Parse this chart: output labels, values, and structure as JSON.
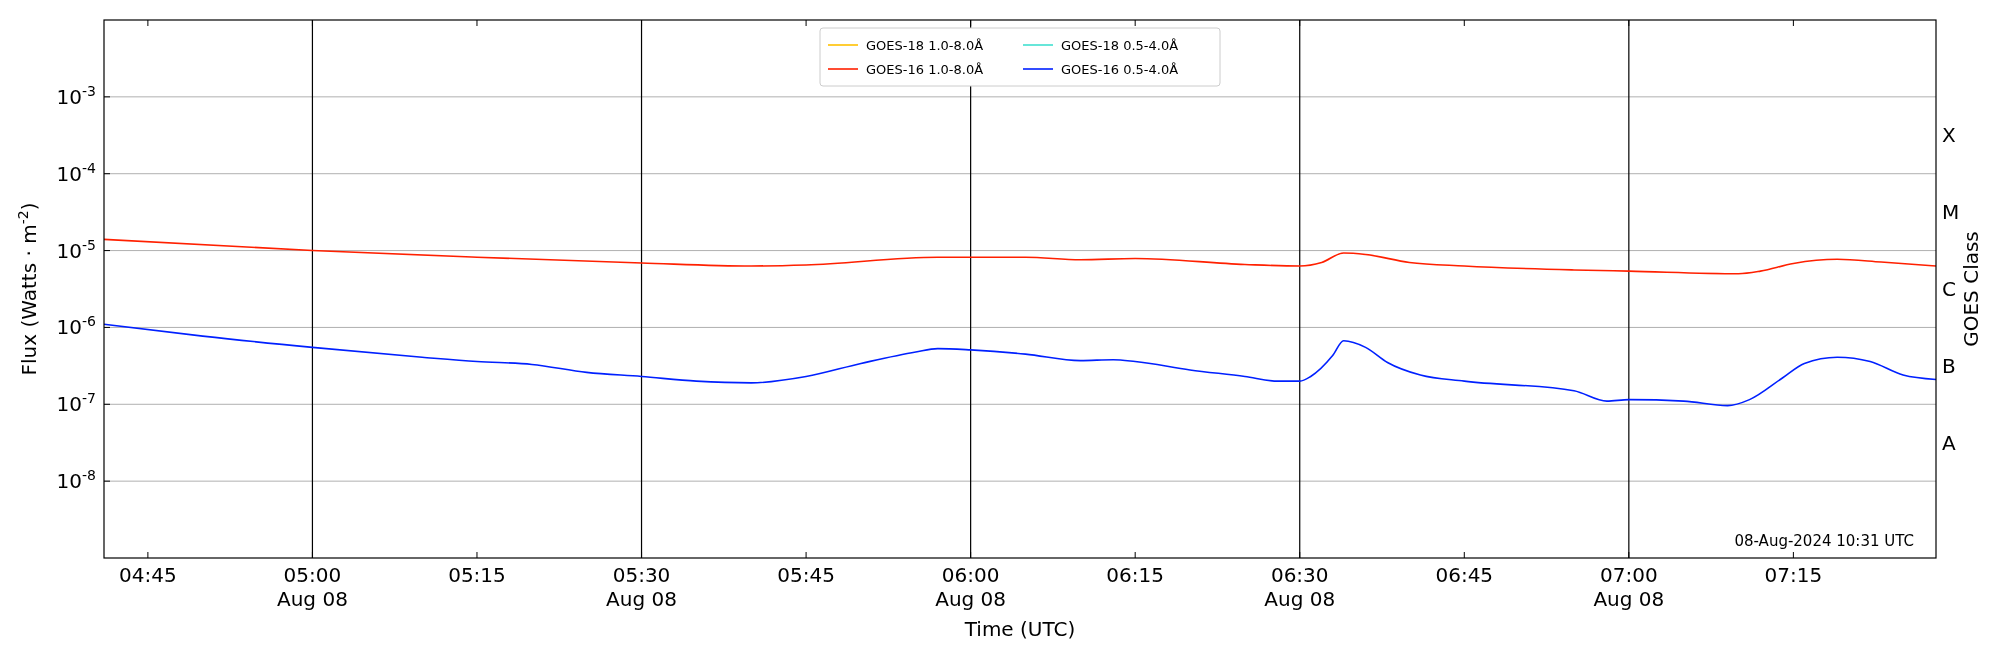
{
  "chart_data": {
    "type": "line",
    "xlabel": "Time (UTC)",
    "ylabel": "Flux (Watts · m$^{-2}$)",
    "y2label": "GOES Class",
    "log": "y",
    "grid": "y",
    "legend": "top",
    "line_style": "solid",
    "marker": "none",
    "xlim": [
      "2024-08-08T04:41",
      "2024-08-08T07:28"
    ],
    "xticks": [
      {
        "value": "2024-08-08T04:45",
        "label": "04:45"
      },
      {
        "value": "2024-08-08T05:00",
        "label": "05:00\nAug 08"
      },
      {
        "value": "2024-08-08T05:15",
        "label": "05:15"
      },
      {
        "value": "2024-08-08T05:30",
        "label": "05:30\nAug 08"
      },
      {
        "value": "2024-08-08T05:45",
        "label": "05:45"
      },
      {
        "value": "2024-08-08T06:00",
        "label": "06:00\nAug 08"
      },
      {
        "value": "2024-08-08T06:15",
        "label": "06:15"
      },
      {
        "value": "2024-08-08T06:30",
        "label": "06:30\nAug 08"
      },
      {
        "value": "2024-08-08T06:45",
        "label": "06:45"
      },
      {
        "value": "2024-08-08T07:00",
        "label": "07:00\nAug 08"
      },
      {
        "value": "2024-08-08T07:15",
        "label": "07:15"
      }
    ],
    "ylim": [
      1e-09,
      0.01
    ],
    "yticks": [
      {
        "value": 1e-08,
        "label": "10$^{-8}$"
      },
      {
        "value": 1e-07,
        "label": "10$^{-7}$"
      },
      {
        "value": 1e-06,
        "label": "10$^{-6}$"
      },
      {
        "value": 1e-05,
        "label": "10$^{-5}$"
      },
      {
        "value": 0.0001,
        "label": "10$^{-4}$"
      },
      {
        "value": 0.001,
        "label": "10$^{-3}$"
      }
    ],
    "y2_categories": [
      null,
      "X",
      "M",
      "C",
      "B",
      "A",
      null
    ],
    "ref_lines": [
      {
        "axis": "x",
        "value": "2024-08-08T05:00",
        "color": "#000000"
      },
      {
        "axis": "x",
        "value": "2024-08-08T05:30",
        "color": "#000000"
      },
      {
        "axis": "x",
        "value": "2024-08-08T06:00",
        "color": "#000000"
      },
      {
        "axis": "x",
        "value": "2024-08-08T06:30",
        "color": "#000000"
      },
      {
        "axis": "x",
        "value": "2024-08-08T07:00",
        "color": "#000000"
      }
    ],
    "annotations": [
      "08-Aug-2024 10:31 UTC"
    ],
    "series": [
      {
        "name": "GOES-18 1.0-8.0Å",
        "color": "#ffc000"
      },
      {
        "name": "GOES-16 1.0-8.0Å",
        "color": "#ff2000",
        "x": [
          "2024-08-08T04:41",
          "2024-08-08T05:00",
          "2024-08-08T05:15",
          "2024-08-08T05:30",
          "2024-08-08T05:40",
          "2024-08-08T05:45",
          "2024-08-08T05:57",
          "2024-08-08T06:05",
          "2024-08-08T06:10",
          "2024-08-08T06:15",
          "2024-08-08T06:25",
          "2024-08-08T06:30",
          "2024-08-08T06:32",
          "2024-08-08T06:34",
          "2024-08-08T06:36",
          "2024-08-08T06:40",
          "2024-08-08T06:45",
          "2024-08-08T06:55",
          "2024-08-08T07:00",
          "2024-08-08T07:10",
          "2024-08-08T07:12",
          "2024-08-08T07:15",
          "2024-08-08T07:19",
          "2024-08-08T07:23",
          "2024-08-08T07:28"
        ],
        "values": [
          1.4e-05,
          1e-05,
          8.2e-06,
          6.9e-06,
          6.3e-06,
          6.5e-06,
          8.2e-06,
          8.2e-06,
          7.6e-06,
          7.9e-06,
          6.6e-06,
          6.3e-06,
          7e-06,
          9.3e-06,
          8.9e-06,
          7e-06,
          6.3e-06,
          5.6e-06,
          5.4e-06,
          5e-06,
          5.4e-06,
          6.8e-06,
          7.7e-06,
          7.1e-06,
          6.3e-06
        ]
      },
      {
        "name": "GOES-18 0.5-4.0Å",
        "color": "#40e0d0"
      },
      {
        "name": "GOES-16 0.5-4.0Å",
        "color": "#0020ff",
        "x": [
          "2024-08-08T04:41",
          "2024-08-08T04:50",
          "2024-08-08T05:00",
          "2024-08-08T05:10",
          "2024-08-08T05:15",
          "2024-08-08T05:20",
          "2024-08-08T05:25",
          "2024-08-08T05:30",
          "2024-08-08T05:35",
          "2024-08-08T05:40",
          "2024-08-08T05:45",
          "2024-08-08T05:50",
          "2024-08-08T05:55",
          "2024-08-08T05:57",
          "2024-08-08T06:00",
          "2024-08-08T06:05",
          "2024-08-08T06:10",
          "2024-08-08T06:13",
          "2024-08-08T06:15",
          "2024-08-08T06:20",
          "2024-08-08T06:25",
          "2024-08-08T06:28",
          "2024-08-08T06:30",
          "2024-08-08T06:31",
          "2024-08-08T06:33",
          "2024-08-08T06:34",
          "2024-08-08T06:36",
          "2024-08-08T06:38",
          "2024-08-08T06:41",
          "2024-08-08T06:45",
          "2024-08-08T06:55",
          "2024-08-08T06:58",
          "2024-08-08T07:00",
          "2024-08-08T07:05",
          "2024-08-08T07:09",
          "2024-08-08T07:11",
          "2024-08-08T07:14",
          "2024-08-08T07:16",
          "2024-08-08T07:19",
          "2024-08-08T07:22",
          "2024-08-08T07:25",
          "2024-08-08T07:28"
        ],
        "values": [
          1.1e-06,
          7.7e-07,
          5.5e-07,
          4.1e-07,
          3.6e-07,
          3.3e-07,
          2.6e-07,
          2.3e-07,
          2e-07,
          1.9e-07,
          2.3e-07,
          3.4e-07,
          4.8e-07,
          5.3e-07,
          5.1e-07,
          4.5e-07,
          3.7e-07,
          3.8e-07,
          3.6e-07,
          2.8e-07,
          2.3e-07,
          2e-07,
          2e-07,
          2.3e-07,
          4.3e-07,
          6.7e-07,
          5.5e-07,
          3.5e-07,
          2.4e-07,
          2e-07,
          1.5e-07,
          1.1e-07,
          1.15e-07,
          1.1e-07,
          9.6e-08,
          1.15e-07,
          2.2e-07,
          3.4e-07,
          4.1e-07,
          3.6e-07,
          2.4e-07,
          2.1e-07
        ]
      }
    ]
  }
}
